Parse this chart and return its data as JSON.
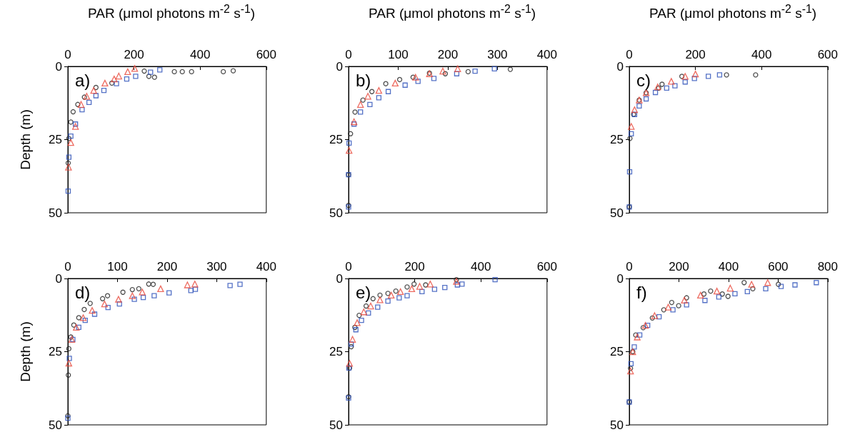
{
  "chart_data": [
    {
      "type": "scatter",
      "title": "a)",
      "xlabel": "PAR (μmol photons m$^{-2}$ s$^{-1}$)",
      "ylabel": "Depth (m)",
      "xlim": [
        0,
        600
      ],
      "xticks": [
        0,
        200,
        400,
        600
      ],
      "ylim": [
        50,
        0
      ],
      "yticks": [
        0,
        25,
        50
      ],
      "grid": false,
      "series": [
        {
          "color": "#222222",
          "marker": "circle",
          "x": [
            500,
            470,
            374,
            346,
            322,
            262,
            245,
            231,
            133,
            85,
            50,
            30,
            16,
            9,
            3,
            1
          ],
          "values": [
            1.5,
            1.8,
            1.8,
            1.8,
            1.8,
            3.7,
            3.4,
            1.6,
            5.7,
            7.2,
            10.5,
            13,
            15.5,
            19,
            24.6,
            33
          ]
        },
        {
          "color": "#e8473a",
          "marker": "triangle",
          "x": [
            202,
            181,
            154,
            140,
            112,
            78,
            57,
            40,
            23,
            9,
            2
          ],
          "values": [
            0.7,
            1.8,
            3.3,
            4.3,
            5.7,
            8.2,
            10.2,
            13,
            20.5,
            26,
            34.4
          ]
        },
        {
          "color": "#2b4fb8",
          "marker": "square",
          "x": [
            278,
            250,
            205,
            178,
            147,
            109,
            85,
            64,
            43,
            23,
            9,
            3,
            1
          ],
          "values": [
            1.2,
            2,
            3.4,
            4.3,
            5.9,
            8.2,
            10,
            12.3,
            14.8,
            19.7,
            23.8,
            31,
            42.6
          ]
        }
      ]
    },
    {
      "type": "scatter",
      "title": "b)",
      "xlabel": "PAR (μmol photons m$^{-2}$ s$^{-1}$)",
      "xlim": [
        0,
        400
      ],
      "xticks": [
        0,
        100,
        200,
        300,
        400
      ],
      "ylim": [
        50,
        0
      ],
      "yticks": [
        0,
        25,
        50
      ],
      "grid": false,
      "series": [
        {
          "color": "#222222",
          "marker": "circle",
          "x": [
            326,
            241,
            195,
            163,
            130,
            103,
            75,
            47,
            29,
            13,
            4,
            0,
            0
          ],
          "values": [
            1,
            1.8,
            2.5,
            2.3,
            3.7,
            4.5,
            5.9,
            8.6,
            11.5,
            15.6,
            23,
            37,
            47.5
          ]
        },
        {
          "color": "#e8473a",
          "marker": "triangle",
          "x": [
            220,
            190,
            163,
            135,
            94,
            61,
            39,
            24,
            11,
            1
          ],
          "values": [
            0.8,
            1.6,
            2.5,
            3.7,
            5.7,
            8.2,
            10.2,
            13,
            18.9,
            28.7
          ]
        },
        {
          "color": "#2b4fb8",
          "marker": "square",
          "x": [
            294,
            255,
            218,
            172,
            140,
            114,
            80,
            61,
            43,
            24,
            11,
            1,
            0,
            0
          ],
          "values": [
            0.8,
            1.6,
            2.5,
            4.1,
            5.1,
            6.4,
            8.6,
            10.7,
            13,
            15.6,
            19.7,
            26.2,
            37,
            48
          ]
        }
      ]
    },
    {
      "type": "scatter",
      "title": "c)",
      "xlabel": "PAR (μmol photons m$^{-2}$ s$^{-1}$)",
      "xlim": [
        0,
        600
      ],
      "xticks": [
        0,
        200,
        400,
        600
      ],
      "ylim": [
        50,
        0
      ],
      "yticks": [
        0,
        25,
        50
      ],
      "grid": false,
      "series": [
        {
          "color": "#222222",
          "marker": "circle",
          "x": [
            382,
            294,
            159,
            99,
            89,
            51,
            30,
            13,
            2,
            0
          ],
          "values": [
            2.9,
            2.9,
            3.4,
            6.1,
            7.4,
            9,
            11.5,
            16.4,
            24.6,
            48
          ]
        },
        {
          "color": "#e8473a",
          "marker": "triangle",
          "x": [
            200,
            169,
            127,
            86,
            51,
            30,
            16,
            6
          ],
          "values": [
            2.6,
            3.4,
            5.1,
            7,
            9,
            11.5,
            14.8,
            20.5
          ]
        },
        {
          "color": "#2b4fb8",
          "marker": "square",
          "x": [
            273,
            239,
            197,
            169,
            138,
            113,
            79,
            51,
            30,
            16,
            6,
            1,
            0
          ],
          "values": [
            2.9,
            3.4,
            4.1,
            5.3,
            6.6,
            7.4,
            8.9,
            11.1,
            13.5,
            16.4,
            23,
            36,
            48
          ]
        }
      ]
    },
    {
      "type": "scatter",
      "title": "d)",
      "ylabel": "Depth (m)",
      "xlim": [
        0,
        400
      ],
      "xticks": [
        0,
        100,
        200,
        300,
        400
      ],
      "ylim": [
        50,
        0
      ],
      "yticks": [
        0,
        25,
        50
      ],
      "grid": false,
      "series": [
        {
          "color": "#222222",
          "marker": "circle",
          "x": [
            172,
            163,
            143,
            130,
            111,
            80,
            70,
            45,
            33,
            22,
            12,
            6,
            2,
            1,
            0
          ],
          "values": [
            2,
            1.9,
            3.5,
            3.8,
            4.7,
            5.9,
            6.9,
            8.5,
            10.6,
            13.4,
            15.9,
            20,
            24,
            33,
            46.9
          ]
        },
        {
          "color": "#e8473a",
          "marker": "triangle",
          "x": [
            256,
            241,
            187,
            150,
            130,
            102,
            74,
            49,
            31,
            17,
            8,
            2
          ],
          "values": [
            1.9,
            2.2,
            3.5,
            4.6,
            5.9,
            7.1,
            8.7,
            10.9,
            13.4,
            16.7,
            20.8,
            28.9
          ]
        },
        {
          "color": "#2b4fb8",
          "marker": "square",
          "x": [
            347,
            327,
            257,
            248,
            204,
            174,
            152,
            134,
            104,
            81,
            54,
            35,
            22,
            10,
            3,
            0
          ],
          "values": [
            2,
            2.4,
            3.7,
            4.1,
            4.9,
            5.9,
            6.5,
            7.1,
            8.7,
            9.9,
            12.2,
            14.3,
            16.7,
            20.8,
            27.3,
            47.7
          ]
        }
      ]
    },
    {
      "type": "scatter",
      "title": "e)",
      "xlim": [
        0,
        600
      ],
      "xticks": [
        0,
        200,
        400,
        600
      ],
      "ylim": [
        50,
        0
      ],
      "yticks": [
        0,
        25,
        50
      ],
      "grid": false,
      "series": [
        {
          "color": "#222222",
          "marker": "circle",
          "x": [
            326,
            233,
            198,
            177,
            143,
            119,
            95,
            74,
            53,
            32,
            19,
            8,
            3,
            0
          ],
          "values": [
            0.4,
            2.2,
            1.9,
            2.9,
            4.3,
            5.1,
            5.7,
            6.9,
            9.4,
            12.6,
            16.7,
            23.3,
            30.6,
            40.4
          ]
        },
        {
          "color": "#e8473a",
          "marker": "triangle",
          "x": [
            326,
            247,
            215,
            191,
            157,
            129,
            95,
            67,
            46,
            26,
            12,
            3
          ],
          "values": [
            1,
            1.9,
            2.7,
            3.5,
            4.5,
            5.7,
            7.3,
            9.4,
            11.4,
            15.1,
            20.8,
            29
          ]
        },
        {
          "color": "#2b4fb8",
          "marker": "square",
          "x": [
            443,
            343,
            329,
            291,
            260,
            222,
            177,
            153,
            119,
            88,
            60,
            39,
            22,
            8,
            1,
            0
          ],
          "values": [
            0.4,
            1.9,
            2.2,
            3.1,
            3.7,
            4.5,
            5.9,
            6.6,
            7.7,
            9.8,
            11.8,
            14.3,
            17.5,
            22.4,
            30.6,
            40.8
          ]
        }
      ]
    },
    {
      "type": "scatter",
      "title": "f)",
      "xlim": [
        0,
        800
      ],
      "xticks": [
        0,
        200,
        400,
        600,
        800
      ],
      "ylim": [
        50,
        0
      ],
      "yticks": [
        0,
        25,
        50
      ],
      "grid": false,
      "series": [
        {
          "color": "#222222",
          "marker": "circle",
          "x": [
            601,
            498,
            463,
            398,
            375,
            328,
            301,
            231,
            199,
            171,
            139,
            93,
            56,
            26,
            14,
            5,
            0
          ],
          "values": [
            2,
            3.5,
            1.4,
            6.1,
            5.3,
            4.3,
            5.3,
            6.6,
            9.3,
            8.2,
            10.7,
            13.5,
            16.8,
            19.3,
            25,
            30.7,
            42.2
          ]
        },
        {
          "color": "#e8473a",
          "marker": "triangle",
          "x": [
            558,
            493,
            407,
            353,
            287,
            222,
            157,
            102,
            65,
            32,
            14,
            5
          ],
          "values": [
            1.4,
            2,
            3.3,
            4.3,
            5.7,
            7.4,
            9.8,
            12.7,
            16,
            20,
            25,
            31.6
          ]
        },
        {
          "color": "#2b4fb8",
          "marker": "square",
          "x": [
            754,
            668,
            612,
            550,
            476,
            426,
            361,
            305,
            231,
            176,
            120,
            74,
            42,
            20,
            7,
            0
          ],
          "values": [
            1.4,
            2.2,
            2.7,
            3.5,
            4.5,
            5.2,
            6.3,
            7.5,
            9,
            10.7,
            13.1,
            16,
            19.3,
            23.4,
            29.1,
            42.2
          ]
        }
      ]
    }
  ]
}
